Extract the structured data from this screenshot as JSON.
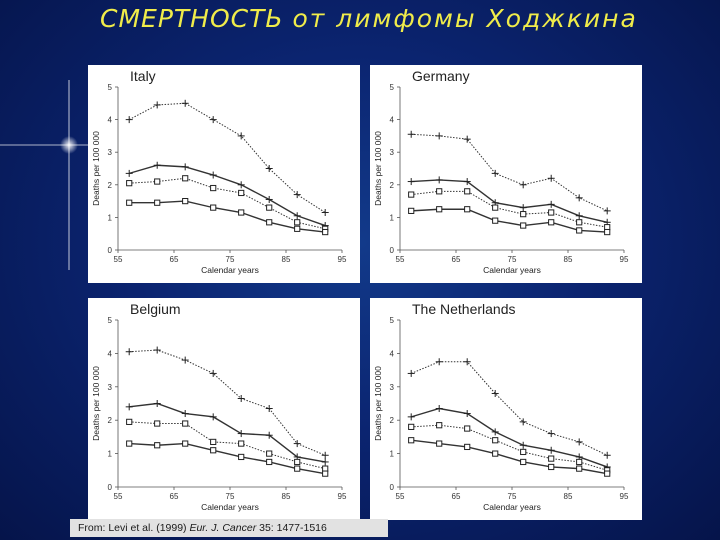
{
  "slide": {
    "title_part1": "СМЕРТНОСТЬ",
    "title_part2": "от лимфомы Ходжкина",
    "source_prefix": "From: Levi et al. (1999) ",
    "source_journal": "Eur. J. Cancer",
    "source_suffix": " 35: 1477-1516"
  },
  "colors": {
    "background": "#0b2470",
    "title": "#f0ec4a",
    "panel": "#ffffff",
    "ink": "#333333"
  },
  "chart_data": [
    {
      "type": "line",
      "title": "Italy",
      "xlabel": "Calendar years",
      "ylabel": "Deaths per 100 000",
      "xlim": [
        55,
        95
      ],
      "ylim": [
        0,
        5
      ],
      "xticks": [
        55,
        65,
        75,
        85,
        95
      ],
      "yticks": [
        0,
        1,
        2,
        3,
        4,
        5
      ],
      "x": [
        57,
        62,
        67,
        72,
        77,
        82,
        87,
        92
      ],
      "series": [
        {
          "marker": "plus",
          "line": "dotted",
          "values": [
            4.0,
            4.45,
            4.5,
            4.0,
            3.5,
            2.5,
            1.7,
            1.15
          ]
        },
        {
          "marker": "plus",
          "line": "solid",
          "values": [
            2.35,
            2.6,
            2.55,
            2.3,
            2.0,
            1.55,
            1.05,
            0.75
          ]
        },
        {
          "marker": "square",
          "line": "dotted",
          "values": [
            2.05,
            2.1,
            2.2,
            1.9,
            1.75,
            1.3,
            0.85,
            0.65
          ]
        },
        {
          "marker": "square",
          "line": "solid",
          "values": [
            1.45,
            1.45,
            1.5,
            1.3,
            1.15,
            0.85,
            0.65,
            0.55
          ]
        }
      ]
    },
    {
      "type": "line",
      "title": "Germany",
      "xlabel": "Calendar years",
      "ylabel": "Deaths per 100 000",
      "xlim": [
        55,
        95
      ],
      "ylim": [
        0,
        5
      ],
      "xticks": [
        55,
        65,
        75,
        85,
        95
      ],
      "yticks": [
        0,
        1,
        2,
        3,
        4,
        5
      ],
      "x": [
        57,
        62,
        67,
        72,
        77,
        82,
        87,
        92
      ],
      "series": [
        {
          "marker": "plus",
          "line": "dotted",
          "values": [
            3.55,
            3.5,
            3.4,
            2.35,
            2.0,
            2.2,
            1.6,
            1.2
          ]
        },
        {
          "marker": "plus",
          "line": "solid",
          "values": [
            2.1,
            2.15,
            2.1,
            1.45,
            1.3,
            1.4,
            1.05,
            0.85
          ]
        },
        {
          "marker": "square",
          "line": "dotted",
          "values": [
            1.7,
            1.8,
            1.8,
            1.3,
            1.1,
            1.15,
            0.85,
            0.7
          ]
        },
        {
          "marker": "square",
          "line": "solid",
          "values": [
            1.2,
            1.25,
            1.25,
            0.9,
            0.75,
            0.85,
            0.6,
            0.55
          ]
        }
      ]
    },
    {
      "type": "line",
      "title": "Belgium",
      "xlabel": "Calendar years",
      "ylabel": "Deaths per 100 000",
      "xlim": [
        55,
        95
      ],
      "ylim": [
        0,
        5
      ],
      "xticks": [
        55,
        65,
        75,
        85,
        95
      ],
      "yticks": [
        0,
        1,
        2,
        3,
        4,
        5
      ],
      "x": [
        57,
        62,
        67,
        72,
        77,
        82,
        87,
        92
      ],
      "series": [
        {
          "marker": "plus",
          "line": "dotted",
          "values": [
            4.05,
            4.1,
            3.8,
            3.4,
            2.65,
            2.35,
            1.3,
            0.95
          ]
        },
        {
          "marker": "plus",
          "line": "solid",
          "values": [
            2.4,
            2.5,
            2.2,
            2.1,
            1.6,
            1.55,
            0.9,
            0.75
          ]
        },
        {
          "marker": "square",
          "line": "dotted",
          "values": [
            1.95,
            1.9,
            1.9,
            1.35,
            1.3,
            1.0,
            0.75,
            0.55
          ]
        },
        {
          "marker": "square",
          "line": "solid",
          "values": [
            1.3,
            1.25,
            1.3,
            1.1,
            0.9,
            0.75,
            0.55,
            0.4
          ]
        }
      ]
    },
    {
      "type": "line",
      "title": "The Netherlands",
      "xlabel": "Calendar years",
      "ylabel": "Deaths per 100 000",
      "xlim": [
        55,
        95
      ],
      "ylim": [
        0,
        5
      ],
      "xticks": [
        55,
        65,
        75,
        85,
        95
      ],
      "yticks": [
        0,
        1,
        2,
        3,
        4,
        5
      ],
      "x": [
        57,
        62,
        67,
        72,
        77,
        82,
        87,
        92
      ],
      "series": [
        {
          "marker": "plus",
          "line": "dotted",
          "values": [
            3.4,
            3.75,
            3.75,
            2.8,
            1.95,
            1.6,
            1.35,
            0.95
          ]
        },
        {
          "marker": "plus",
          "line": "solid",
          "values": [
            2.1,
            2.35,
            2.2,
            1.65,
            1.25,
            1.1,
            0.9,
            0.6
          ]
        },
        {
          "marker": "square",
          "line": "dotted",
          "values": [
            1.8,
            1.85,
            1.75,
            1.4,
            1.05,
            0.85,
            0.75,
            0.5
          ]
        },
        {
          "marker": "square",
          "line": "solid",
          "values": [
            1.4,
            1.3,
            1.2,
            1.0,
            0.75,
            0.6,
            0.55,
            0.4
          ]
        }
      ]
    }
  ]
}
